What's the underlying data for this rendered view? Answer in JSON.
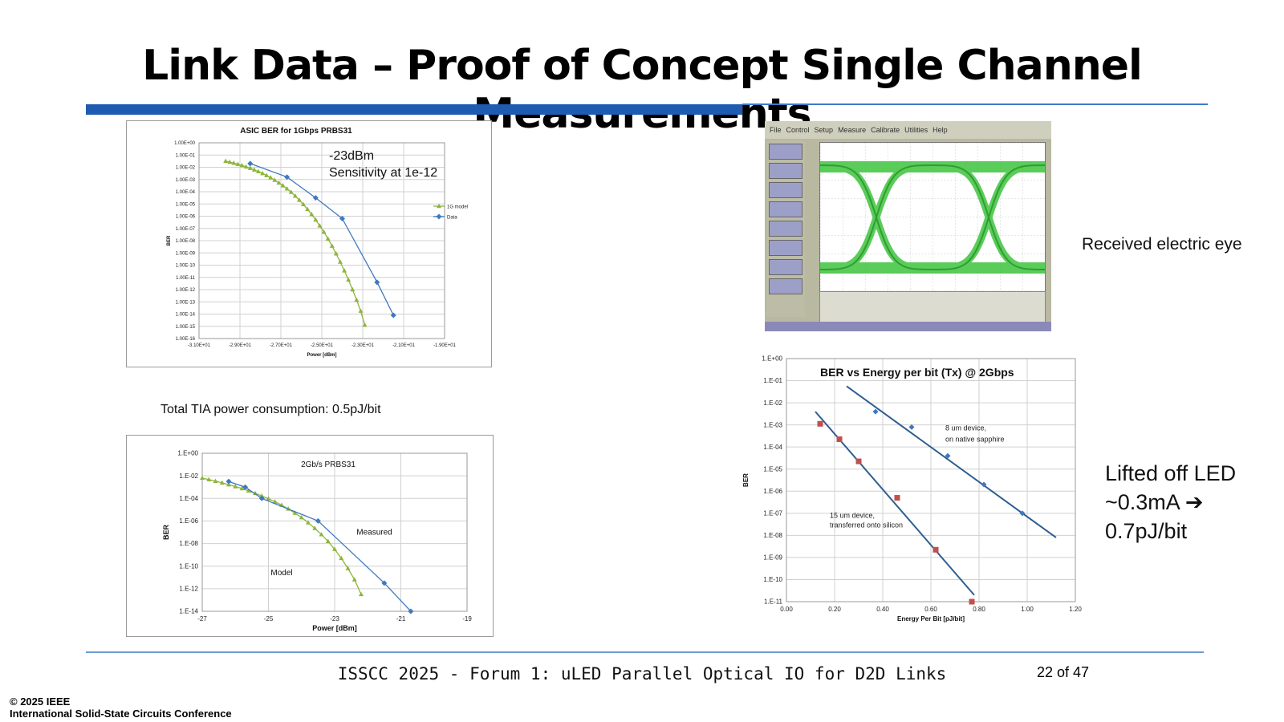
{
  "slide": {
    "title": "Link Data – Proof of Concept Single Channel Measurements",
    "footer": "ISSCC 2025 - Forum 1: uLED Parallel Optical IO for D2D Links",
    "page": "22 of 47",
    "copyright_line1": "© 2025 IEEE",
    "copyright_line2": "International Solid-State Circuits Conference",
    "annotations": {
      "sensitivity_line1": "-23dBm",
      "sensitivity_line2": "Sensitivity at 1e-12",
      "tia_power": "Total TIA power consumption: 0.5pJ/bit",
      "eye_caption": "Received electric eye",
      "led_line1": "Lifted off LED",
      "led_line2": "~0.3mA ➔",
      "led_line3": "0.7pJ/bit"
    },
    "colors": {
      "accent_blue": "#1f5bb0",
      "series_green": "#8db53a",
      "series_blue": "#3f78c2",
      "series_red": "#c0504d",
      "fit_line": "#2e5d8f"
    }
  },
  "chart_data": [
    {
      "id": "asic",
      "type": "line",
      "title": "ASIC BER for 1Gbps PRBS31",
      "xlabel": "Power [dBm]",
      "ylabel": "BER",
      "xlim": [
        -31,
        -19
      ],
      "ylim_exp": [
        -16,
        0
      ],
      "y_log": true,
      "grid": true,
      "legend_position": "right",
      "x_ticks": [
        "-3.10E+01",
        "-2.90E+01",
        "-2.70E+01",
        "-2.50E+01",
        "-2.30E+01",
        "-2.10E+01",
        "-1.90E+01"
      ],
      "y_ticks": [
        "1.00E+00",
        "1.00E-01",
        "1.00E-02",
        "1.00E-03",
        "1.00E-04",
        "1.00E-05",
        "1.00E-06",
        "1.00E-07",
        "1.00E-08",
        "1.00E-09",
        "1.00E-10",
        "1.00E-11",
        "1.00E-12",
        "1.00E-13",
        "1.00E-14",
        "1.00E-15",
        "1.00E-16"
      ],
      "series": [
        {
          "name": "1G model",
          "color": "#8db53a",
          "marker": "triangle",
          "x": [
            -29.7,
            -29.5,
            -29.3,
            -29.1,
            -28.9,
            -28.7,
            -28.5,
            -28.3,
            -28.1,
            -27.9,
            -27.7,
            -27.5,
            -27.3,
            -27.1,
            -26.9,
            -26.7,
            -26.5,
            -26.3,
            -26.1,
            -25.9,
            -25.7,
            -25.5,
            -25.3,
            -25.1,
            -24.9,
            -24.7,
            -24.5,
            -24.3,
            -24.1,
            -23.9,
            -23.7,
            -23.5,
            -23.3,
            -23.1,
            -22.9
          ],
          "y": [
            -1.5,
            -1.58,
            -1.66,
            -1.75,
            -1.85,
            -1.96,
            -2.08,
            -2.21,
            -2.35,
            -2.5,
            -2.67,
            -2.85,
            -3.05,
            -3.27,
            -3.5,
            -3.76,
            -4.04,
            -4.35,
            -4.68,
            -5.04,
            -5.43,
            -5.85,
            -6.3,
            -6.78,
            -7.3,
            -7.85,
            -8.44,
            -9.07,
            -9.74,
            -10.45,
            -11.2,
            -12.0,
            -12.85,
            -13.75,
            -14.9
          ]
        },
        {
          "name": "Data",
          "color": "#3f78c2",
          "marker": "diamond",
          "x": [
            -28.5,
            -26.7,
            -25.3,
            -24.0,
            -22.3,
            -21.5
          ],
          "y": [
            -1.7,
            -2.8,
            -4.5,
            -6.2,
            -11.4,
            -14.1
          ]
        }
      ]
    },
    {
      "id": "tia",
      "type": "line",
      "title": "2Gb/s PRBS31",
      "xlabel": "Power [dBm]",
      "ylabel": "BER",
      "xlim": [
        -27,
        -19
      ],
      "ylim_exp": [
        -14,
        0
      ],
      "y_log": true,
      "grid": true,
      "x_ticks": [
        "-27",
        "-25",
        "-23",
        "-21",
        "-19"
      ],
      "y_ticks": [
        "1.E+00",
        "1.E-02",
        "1.E-04",
        "1.E-06",
        "1.E-08",
        "1.E-10",
        "1.E-12",
        "1.E-14"
      ],
      "labels": {
        "measured": "Measured",
        "model": "Model"
      },
      "series": [
        {
          "name": "Model",
          "color": "#8db53a",
          "marker": "triangle",
          "x": [
            -27.0,
            -26.8,
            -26.6,
            -26.4,
            -26.2,
            -26.0,
            -25.8,
            -25.6,
            -25.4,
            -25.2,
            -25.0,
            -24.8,
            -24.6,
            -24.4,
            -24.2,
            -24.0,
            -23.8,
            -23.6,
            -23.4,
            -23.2,
            -23.0,
            -22.8,
            -22.6,
            -22.4,
            -22.2
          ],
          "y": [
            -2.2,
            -2.33,
            -2.47,
            -2.62,
            -2.78,
            -2.95,
            -3.13,
            -3.33,
            -3.55,
            -3.78,
            -4.03,
            -4.3,
            -4.6,
            -4.93,
            -5.3,
            -5.7,
            -6.15,
            -6.65,
            -7.2,
            -7.8,
            -8.5,
            -9.3,
            -10.2,
            -11.2,
            -12.5
          ]
        },
        {
          "name": "Measured",
          "color": "#3f78c2",
          "marker": "diamond",
          "x": [
            -26.2,
            -25.7,
            -25.2,
            -23.5,
            -21.5,
            -20.7
          ],
          "y": [
            -2.5,
            -3.0,
            -4.0,
            -6.0,
            -11.5,
            -14.0
          ]
        }
      ]
    },
    {
      "id": "energy",
      "type": "scatter",
      "title": "BER vs Energy per bit (Tx) @ 2Gbps",
      "xlabel": "Energy Per Bit [pJ/bit]",
      "ylabel": "BER",
      "xlim": [
        0,
        1.2
      ],
      "ylim_exp": [
        -11,
        0
      ],
      "y_log": true,
      "grid": true,
      "x_ticks": [
        "0.00",
        "0.20",
        "0.40",
        "0.60",
        "0.80",
        "1.00",
        "1.20"
      ],
      "y_ticks": [
        "1.E+00",
        "1.E-01",
        "1.E-02",
        "1.E-03",
        "1.E-04",
        "1.E-05",
        "1.E-06",
        "1.E-07",
        "1.E-08",
        "1.E-09",
        "1.E-10",
        "1.E-11"
      ],
      "series": [
        {
          "name": "8 um device, on native sapphire",
          "label_line1": "8 um device,",
          "label_line2": "on native sapphire",
          "color": "#3f78c2",
          "marker": "diamond",
          "x": [
            0.37,
            0.52,
            0.67,
            0.82,
            0.98
          ],
          "y": [
            -2.4,
            -3.1,
            -4.4,
            -5.7,
            -7.0
          ],
          "fit": {
            "x": [
              0.25,
              1.12
            ],
            "y": [
              -1.25,
              -8.1
            ]
          }
        },
        {
          "name": "15 um device, transferred onto silicon",
          "label_line1": "15 um device,",
          "label_line2": "transferred onto silicon",
          "color": "#c0504d",
          "marker": "square",
          "x": [
            0.14,
            0.22,
            0.3,
            0.46,
            0.62,
            0.77
          ],
          "y": [
            -2.95,
            -3.65,
            -4.65,
            -6.3,
            -8.65,
            -11.0
          ],
          "fit": {
            "x": [
              0.12,
              0.78
            ],
            "y": [
              -2.4,
              -10.7
            ]
          }
        }
      ]
    }
  ]
}
